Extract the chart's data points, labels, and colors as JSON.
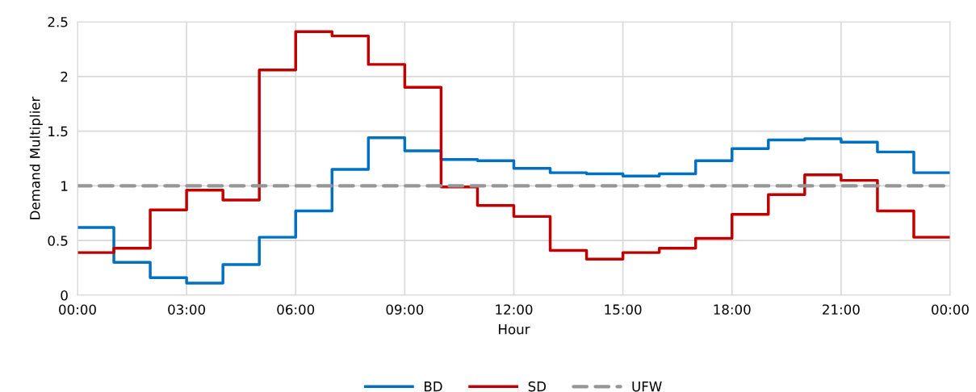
{
  "chart_data": {
    "type": "step",
    "xlabel": "Hour",
    "ylabel": "Demand Multiplier",
    "x": [
      0,
      1,
      2,
      3,
      4,
      5,
      6,
      7,
      8,
      9,
      10,
      11,
      12,
      13,
      14,
      15,
      16,
      17,
      18,
      19,
      20,
      21,
      22,
      23,
      24
    ],
    "series": [
      {
        "name": "BD",
        "color": "#0070c0",
        "values": [
          0.62,
          0.3,
          0.16,
          0.11,
          0.28,
          0.53,
          0.77,
          1.15,
          1.44,
          1.32,
          1.24,
          1.23,
          1.16,
          1.12,
          1.11,
          1.09,
          1.11,
          1.23,
          1.34,
          1.42,
          1.43,
          1.4,
          1.31,
          1.12,
          1.12
        ]
      },
      {
        "name": "SD",
        "color": "#c00000",
        "values": [
          0.39,
          0.43,
          0.78,
          0.96,
          0.87,
          2.06,
          2.41,
          2.37,
          2.11,
          1.9,
          0.99,
          0.82,
          0.72,
          0.41,
          0.33,
          0.39,
          0.43,
          0.52,
          0.74,
          0.92,
          1.1,
          1.05,
          0.77,
          0.53,
          0.53
        ]
      },
      {
        "name": "UFW",
        "color": "#969696",
        "type": "line",
        "line_style": "dashed",
        "x": [
          0,
          24
        ],
        "values": [
          1,
          1
        ]
      }
    ],
    "xlim": [
      0,
      24
    ],
    "xticks": [
      {
        "value": 0,
        "label": "00:00"
      },
      {
        "value": 3,
        "label": "03:00"
      },
      {
        "value": 6,
        "label": "06:00"
      },
      {
        "value": 9,
        "label": "09:00"
      },
      {
        "value": 12,
        "label": "12:00"
      },
      {
        "value": 15,
        "label": "15:00"
      },
      {
        "value": 18,
        "label": "18:00"
      },
      {
        "value": 21,
        "label": "21:00"
      },
      {
        "value": 24,
        "label": "00:00"
      }
    ],
    "ylim": [
      0,
      2.5
    ],
    "yticks": [
      0,
      0.5,
      1,
      1.5,
      2,
      2.5
    ],
    "grid": true,
    "legend": "bottom"
  }
}
